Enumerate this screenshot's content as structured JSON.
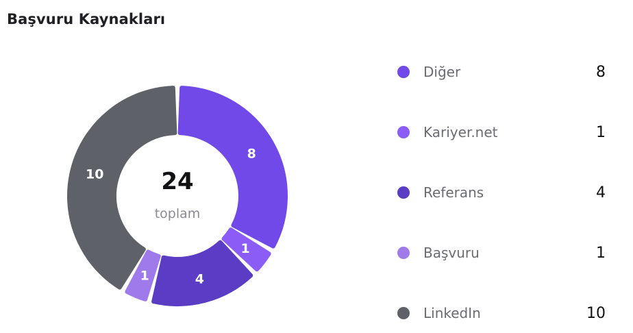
{
  "widget": {
    "title": "Başvuru Kaynakları"
  },
  "chart_data": {
    "type": "pie",
    "variant": "donut",
    "center_value": "24",
    "center_label": "toplam",
    "series": [
      {
        "name": "Diğer",
        "value": 8,
        "color": "#7149e8"
      },
      {
        "name": "Kariyer.net",
        "value": 1,
        "color": "#8b5cf6"
      },
      {
        "name": "Referans",
        "value": 4,
        "color": "#5b3cc4"
      },
      {
        "name": "Başvuru",
        "value": 1,
        "color": "#9f7aea"
      },
      {
        "name": "LinkedIn",
        "value": 10,
        "color": "#5f6168"
      }
    ],
    "legend_position": "right"
  }
}
